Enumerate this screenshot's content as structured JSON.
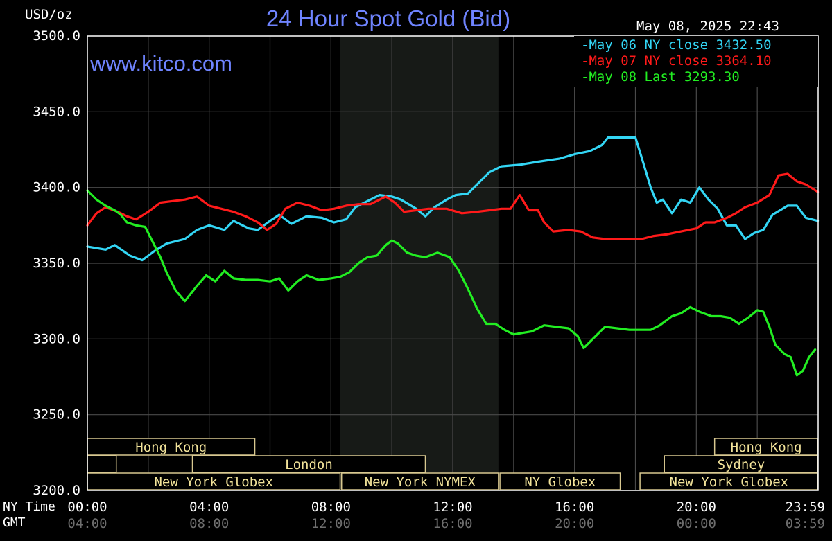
{
  "header": {
    "title": "24 Hour Spot Gold (Bid)",
    "website": "www.kitco.com",
    "unit": "USD/oz",
    "timestamp": "May 08, 2025 22:43"
  },
  "legend": [
    {
      "text": "-May 06 NY close 3432.50",
      "color": "#33d6f5"
    },
    {
      "text": "-May 07 NY close 3364.10",
      "color": "#ff1a1a"
    },
    {
      "text": "-May 08 Last 3293.30",
      "color": "#22ee22"
    }
  ],
  "axes": {
    "row_labels": [
      "NY Time",
      "GMT"
    ],
    "ny_ticks": [
      "00:00",
      "04:00",
      "08:00",
      "12:00",
      "16:00",
      "20:00",
      "23:59"
    ],
    "gmt_ticks": [
      "04:00",
      "08:00",
      "12:00",
      "16:00",
      "20:00",
      "00:00",
      "03:59"
    ]
  },
  "sessions": [
    {
      "label": "Hong Kong",
      "row": 0,
      "start": 0.0,
      "end": 5.5
    },
    {
      "label": "Hong Kong",
      "row": 0,
      "start": 20.6,
      "end": 23.99
    },
    {
      "label": "",
      "row": 1,
      "start": 0.0,
      "end": 0.95
    },
    {
      "label": "London",
      "row": 1,
      "start": 3.45,
      "end": 11.1
    },
    {
      "label": "Sydney",
      "row": 1,
      "start": 18.95,
      "end": 23.99
    },
    {
      "label": "New York Globex",
      "row": 2,
      "start": 0.0,
      "end": 8.3
    },
    {
      "label": "New York NYMEX",
      "row": 2,
      "start": 8.35,
      "end": 13.5
    },
    {
      "label": "NY Globex",
      "row": 2,
      "start": 13.55,
      "end": 17.5
    },
    {
      "label": "New York Globex",
      "row": 2,
      "start": 18.15,
      "end": 23.99
    }
  ],
  "chart_data": {
    "type": "line",
    "title": "24 Hour Spot Gold (Bid)",
    "ylabel": "USD/oz",
    "ylim": [
      3200,
      3500
    ],
    "yticks": [
      3200,
      3250,
      3300,
      3350,
      3400,
      3450,
      3500
    ],
    "ytick_labels": [
      "3200.0",
      "3250.0",
      "3300.0",
      "3350.0",
      "3400.0",
      "3450.0",
      "3500.0"
    ],
    "xlim_hours": [
      0,
      24
    ],
    "grid": true,
    "legend_position": "top-right",
    "shaded_hours": [
      8.3,
      13.5
    ],
    "series": [
      {
        "name": "May 06 NY close 3432.50",
        "color": "#33d6f5",
        "points": [
          [
            0,
            3361
          ],
          [
            0.6,
            3359
          ],
          [
            0.9,
            3362
          ],
          [
            1.4,
            3355
          ],
          [
            1.8,
            3352
          ],
          [
            2.2,
            3358
          ],
          [
            2.6,
            3363
          ],
          [
            3.2,
            3366
          ],
          [
            3.6,
            3372
          ],
          [
            4.0,
            3375
          ],
          [
            4.5,
            3372
          ],
          [
            4.8,
            3378
          ],
          [
            5.3,
            3373
          ],
          [
            5.6,
            3372
          ],
          [
            6.0,
            3378
          ],
          [
            6.3,
            3382
          ],
          [
            6.7,
            3376
          ],
          [
            7.2,
            3381
          ],
          [
            7.7,
            3380
          ],
          [
            8.1,
            3377
          ],
          [
            8.5,
            3379
          ],
          [
            8.8,
            3387
          ],
          [
            9.2,
            3391
          ],
          [
            9.6,
            3395
          ],
          [
            10.0,
            3394
          ],
          [
            10.3,
            3392
          ],
          [
            10.8,
            3386
          ],
          [
            11.1,
            3381
          ],
          [
            11.4,
            3387
          ],
          [
            11.8,
            3392
          ],
          [
            12.1,
            3395
          ],
          [
            12.5,
            3396
          ],
          [
            12.9,
            3404
          ],
          [
            13.2,
            3410
          ],
          [
            13.6,
            3414
          ],
          [
            14.2,
            3415
          ],
          [
            14.8,
            3417
          ],
          [
            15.5,
            3419
          ],
          [
            16.0,
            3422
          ],
          [
            16.5,
            3424
          ],
          [
            16.9,
            3428
          ],
          [
            17.1,
            3433
          ],
          [
            17.6,
            3433
          ],
          [
            18.0,
            3433
          ],
          [
            18.2,
            3420
          ],
          [
            18.5,
            3400
          ],
          [
            18.7,
            3390
          ],
          [
            18.9,
            3392
          ],
          [
            19.2,
            3383
          ],
          [
            19.5,
            3392
          ],
          [
            19.8,
            3390
          ],
          [
            20.1,
            3400
          ],
          [
            20.4,
            3392
          ],
          [
            20.7,
            3386
          ],
          [
            21.0,
            3375
          ],
          [
            21.3,
            3375
          ],
          [
            21.6,
            3366
          ],
          [
            21.9,
            3370
          ],
          [
            22.2,
            3372
          ],
          [
            22.5,
            3382
          ],
          [
            23.0,
            3388
          ],
          [
            23.3,
            3388
          ],
          [
            23.6,
            3380
          ],
          [
            23.99,
            3378
          ]
        ]
      },
      {
        "name": "May 07 NY close 3364.10",
        "color": "#ff1a1a",
        "points": [
          [
            0,
            3375
          ],
          [
            0.3,
            3383
          ],
          [
            0.6,
            3387
          ],
          [
            1.0,
            3384
          ],
          [
            1.3,
            3381
          ],
          [
            1.6,
            3379
          ],
          [
            2.0,
            3384
          ],
          [
            2.4,
            3390
          ],
          [
            2.8,
            3391
          ],
          [
            3.2,
            3392
          ],
          [
            3.6,
            3394
          ],
          [
            4.0,
            3388
          ],
          [
            4.4,
            3386
          ],
          [
            4.8,
            3384
          ],
          [
            5.2,
            3381
          ],
          [
            5.6,
            3377
          ],
          [
            5.9,
            3372
          ],
          [
            6.2,
            3376
          ],
          [
            6.5,
            3386
          ],
          [
            6.9,
            3390
          ],
          [
            7.3,
            3388
          ],
          [
            7.7,
            3385
          ],
          [
            8.1,
            3386
          ],
          [
            8.5,
            3388
          ],
          [
            8.9,
            3389
          ],
          [
            9.3,
            3389
          ],
          [
            9.8,
            3394
          ],
          [
            10.1,
            3390
          ],
          [
            10.4,
            3384
          ],
          [
            10.8,
            3385
          ],
          [
            11.2,
            3386
          ],
          [
            11.8,
            3386
          ],
          [
            12.3,
            3383
          ],
          [
            12.8,
            3384
          ],
          [
            13.2,
            3385
          ],
          [
            13.6,
            3386
          ],
          [
            13.9,
            3386
          ],
          [
            14.2,
            3395
          ],
          [
            14.5,
            3385
          ],
          [
            14.8,
            3385
          ],
          [
            15.0,
            3377
          ],
          [
            15.3,
            3371
          ],
          [
            15.8,
            3372
          ],
          [
            16.2,
            3371
          ],
          [
            16.6,
            3367
          ],
          [
            17.0,
            3366
          ],
          [
            17.5,
            3366
          ],
          [
            17.9,
            3366
          ],
          [
            18.2,
            3366
          ],
          [
            18.6,
            3368
          ],
          [
            19.0,
            3369
          ],
          [
            19.5,
            3371
          ],
          [
            20.0,
            3373
          ],
          [
            20.3,
            3377
          ],
          [
            20.6,
            3377
          ],
          [
            21.0,
            3380
          ],
          [
            21.3,
            3383
          ],
          [
            21.6,
            3387
          ],
          [
            22.0,
            3390
          ],
          [
            22.4,
            3395
          ],
          [
            22.7,
            3408
          ],
          [
            23.0,
            3409
          ],
          [
            23.3,
            3404
          ],
          [
            23.6,
            3402
          ],
          [
            23.99,
            3397
          ]
        ]
      },
      {
        "name": "May 08 Last 3293.30",
        "color": "#22ee22",
        "points": [
          [
            0,
            3398
          ],
          [
            0.3,
            3392
          ],
          [
            0.6,
            3388
          ],
          [
            0.9,
            3385
          ],
          [
            1.1,
            3382
          ],
          [
            1.3,
            3377
          ],
          [
            1.6,
            3375
          ],
          [
            1.9,
            3374
          ],
          [
            2.1,
            3366
          ],
          [
            2.4,
            3354
          ],
          [
            2.6,
            3344
          ],
          [
            2.9,
            3332
          ],
          [
            3.2,
            3325
          ],
          [
            3.6,
            3335
          ],
          [
            3.9,
            3342
          ],
          [
            4.2,
            3338
          ],
          [
            4.5,
            3345
          ],
          [
            4.8,
            3340
          ],
          [
            5.2,
            3339
          ],
          [
            5.6,
            3339
          ],
          [
            6.0,
            3338
          ],
          [
            6.3,
            3340
          ],
          [
            6.6,
            3332
          ],
          [
            6.9,
            3338
          ],
          [
            7.2,
            3342
          ],
          [
            7.6,
            3339
          ],
          [
            8.0,
            3340
          ],
          [
            8.3,
            3341
          ],
          [
            8.6,
            3344
          ],
          [
            8.9,
            3350
          ],
          [
            9.2,
            3354
          ],
          [
            9.5,
            3355
          ],
          [
            9.8,
            3362
          ],
          [
            10.0,
            3365
          ],
          [
            10.2,
            3363
          ],
          [
            10.5,
            3357
          ],
          [
            10.8,
            3355
          ],
          [
            11.1,
            3354
          ],
          [
            11.5,
            3357
          ],
          [
            11.9,
            3354
          ],
          [
            12.2,
            3345
          ],
          [
            12.5,
            3333
          ],
          [
            12.8,
            3320
          ],
          [
            13.1,
            3310
          ],
          [
            13.4,
            3310
          ],
          [
            13.7,
            3306
          ],
          [
            14.0,
            3303
          ],
          [
            14.3,
            3304
          ],
          [
            14.6,
            3305
          ],
          [
            15.0,
            3309
          ],
          [
            15.4,
            3308
          ],
          [
            15.8,
            3307
          ],
          [
            16.1,
            3302
          ],
          [
            16.3,
            3294
          ],
          [
            16.6,
            3300
          ],
          [
            17.0,
            3308
          ],
          [
            17.4,
            3307
          ],
          [
            17.8,
            3306
          ],
          [
            18.2,
            3306
          ],
          [
            18.5,
            3306
          ],
          [
            18.8,
            3309
          ],
          [
            19.2,
            3315
          ],
          [
            19.5,
            3317
          ],
          [
            19.8,
            3321
          ],
          [
            20.1,
            3318
          ],
          [
            20.5,
            3315
          ],
          [
            20.8,
            3315
          ],
          [
            21.1,
            3314
          ],
          [
            21.4,
            3310
          ],
          [
            21.7,
            3314
          ],
          [
            22.0,
            3319
          ],
          [
            22.2,
            3318
          ],
          [
            22.4,
            3308
          ],
          [
            22.6,
            3296
          ],
          [
            22.9,
            3290
          ],
          [
            23.1,
            3288
          ],
          [
            23.3,
            3276
          ],
          [
            23.5,
            3279
          ],
          [
            23.7,
            3288
          ],
          [
            23.9,
            3293
          ]
        ]
      }
    ]
  }
}
